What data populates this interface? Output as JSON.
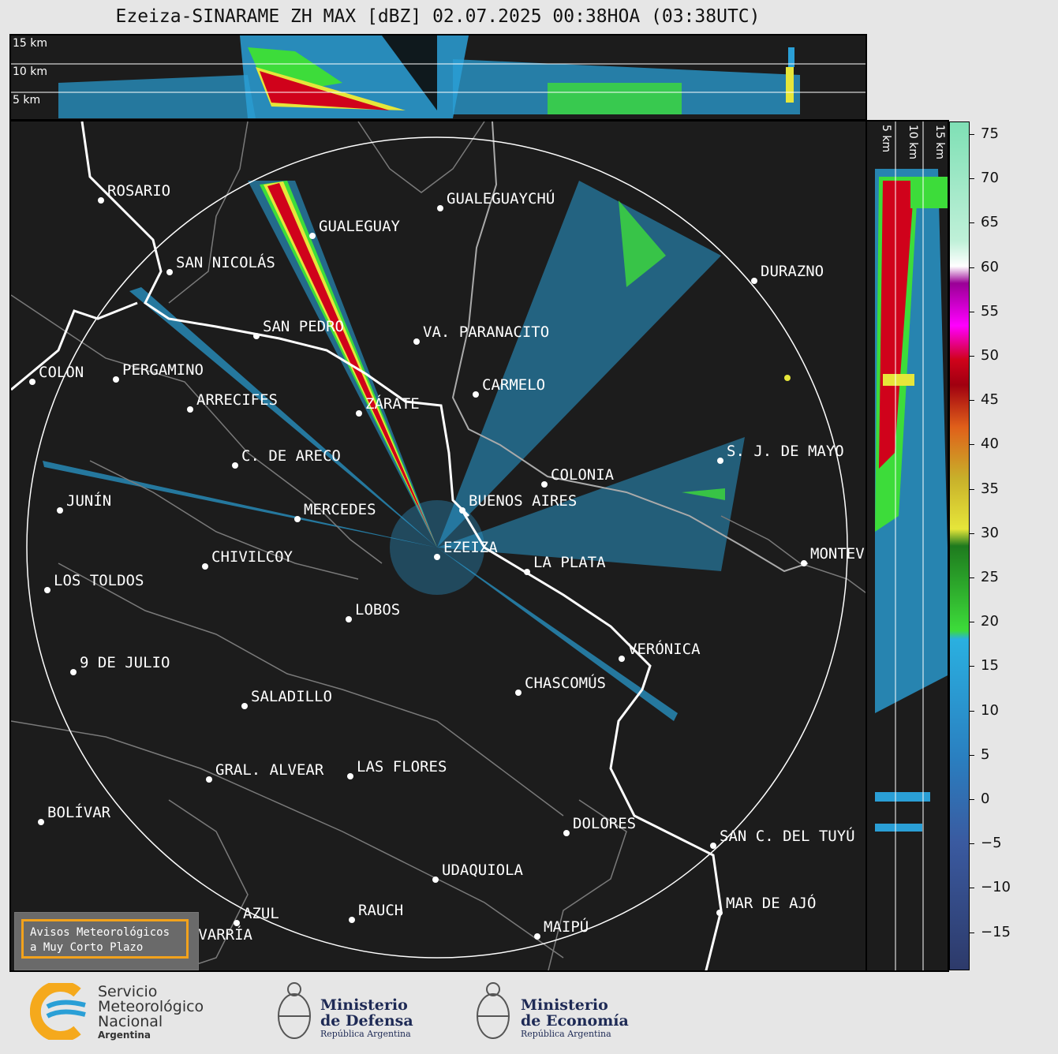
{
  "title": "Ezeiza-SINARAME ZH MAX [dBZ] 02.07.2025 00:38HOA (03:38UTC)",
  "height_labels": [
    "15 km",
    "10 km",
    "5 km"
  ],
  "side_height_labels": [
    "5 km",
    "10 km",
    "15 km"
  ],
  "colorbar": {
    "unit": "dBZ",
    "ticks": [
      "75",
      "70",
      "65",
      "60",
      "55",
      "50",
      "45",
      "40",
      "35",
      "30",
      "25",
      "20",
      "15",
      "10",
      "5",
      "0",
      "−5",
      "−10",
      "−15"
    ]
  },
  "cities": [
    {
      "name": "ROSARIO"
    },
    {
      "name": "GUALEGUAYCHÚ"
    },
    {
      "name": "GUALEGUAY"
    },
    {
      "name": "SAN NICOLÁS"
    },
    {
      "name": "DURAZNO"
    },
    {
      "name": "SAN PEDRO"
    },
    {
      "name": "VA. PARANACITO"
    },
    {
      "name": "COLON"
    },
    {
      "name": "PERGAMINO"
    },
    {
      "name": "CARMELO"
    },
    {
      "name": "ARRECIFES"
    },
    {
      "name": "ZÁRATE"
    },
    {
      "name": "S. J. DE MAYO"
    },
    {
      "name": "C. DE ARECO"
    },
    {
      "name": "COLONIA"
    },
    {
      "name": "JUNÍN"
    },
    {
      "name": "BUENOS AIRES"
    },
    {
      "name": "MERCEDES"
    },
    {
      "name": "EZEIZA"
    },
    {
      "name": "MONTEVIDEO"
    },
    {
      "name": "CHIVILCOY"
    },
    {
      "name": "LA PLATA"
    },
    {
      "name": "LOS TOLDOS"
    },
    {
      "name": "LOBOS"
    },
    {
      "name": "VERÓNICA"
    },
    {
      "name": "9 DE JULIO"
    },
    {
      "name": "CHASCOMÚS"
    },
    {
      "name": "SALADILLO"
    },
    {
      "name": "GRAL. ALVEAR"
    },
    {
      "name": "LAS FLORES"
    },
    {
      "name": "BOLÍVAR"
    },
    {
      "name": "DOLORES"
    },
    {
      "name": "SAN C. DEL TUYÚ"
    },
    {
      "name": "UDAQUIOLA"
    },
    {
      "name": "MAR DE AJÓ"
    },
    {
      "name": "AZUL"
    },
    {
      "name": "RAUCH"
    },
    {
      "name": "OLAVARRÍA"
    },
    {
      "name": "MAIPÚ"
    }
  ],
  "avisos": {
    "line1": "Avisos Meteorológicos",
    "line2": "a Muy Corto Plazo"
  },
  "footer": {
    "smn": {
      "line1": "Servicio",
      "line2": "Meteorológico",
      "line3": "Nacional",
      "line4": "Argentina"
    },
    "defensa": {
      "line1": "Ministerio",
      "line2": "de Defensa",
      "line3": "República Argentina"
    },
    "economia": {
      "line1": "Ministerio",
      "line2": "de Economía",
      "line3": "República Argentina"
    }
  },
  "colors": {
    "background": "#1c1c1c",
    "echo_light_blue": "#2a9fd6",
    "echo_green": "#3ddc3a",
    "echo_red": "#d0021b",
    "echo_yellow": "#e6e63a",
    "accent_orange": "#f2a21c"
  }
}
